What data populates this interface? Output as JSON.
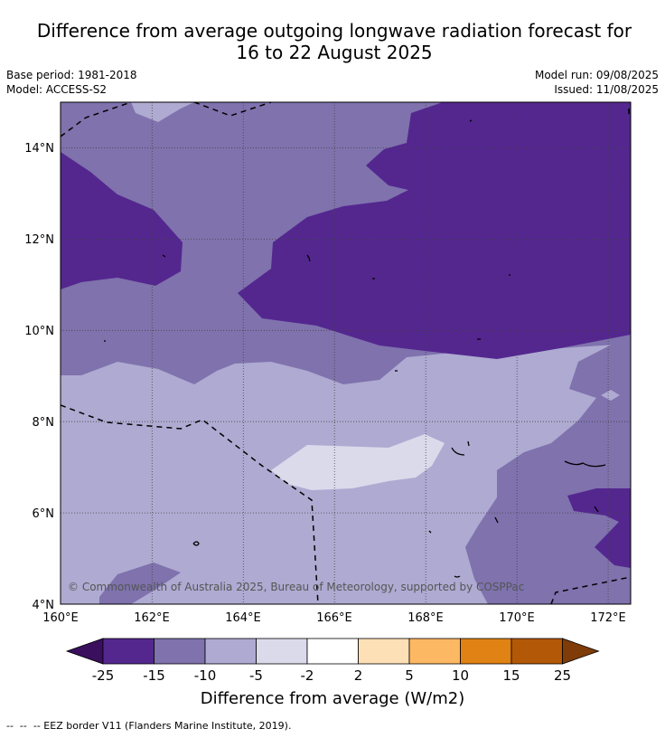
{
  "title": {
    "line1": "Difference from average outgoing longwave radiation forecast for",
    "line2": "16 to 22 August 2025"
  },
  "meta": {
    "base_period": "Base period: 1981-2018",
    "model": "Model: ACCESS-S2",
    "model_run": "Model run: 09/08/2025",
    "issued": "Issued: 11/08/2025"
  },
  "map": {
    "lon_ticks": [
      "160°E",
      "162°E",
      "164°E",
      "166°E",
      "168°E",
      "170°E",
      "172°E"
    ],
    "lat_ticks": [
      "14°N",
      "12°N",
      "10°N",
      "8°N",
      "6°N",
      "4°N"
    ],
    "extent": {
      "lon": [
        160,
        172.5
      ],
      "lat": [
        4,
        15
      ]
    },
    "copyright": "© Commonwealth of Australia 2025, Bureau of Meteorology, supported by COSPPac"
  },
  "colorbar": {
    "title": "Difference from average (W/m2)",
    "tick_labels": [
      "-25",
      "-15",
      "-10",
      "-5",
      "-2",
      "2",
      "5",
      "10",
      "15",
      "25"
    ],
    "colors": [
      "#3a0f5e",
      "#54278f",
      "#7f72ad",
      "#aeaad1",
      "#dadaeb",
      "#ffffff",
      "#fee0b6",
      "#fdb863",
      "#e08214",
      "#b35806",
      "#7f3b08"
    ]
  },
  "legend_note": "--  --  -- EEZ border V11 (Flanders Marine Institute, 2019)."
}
